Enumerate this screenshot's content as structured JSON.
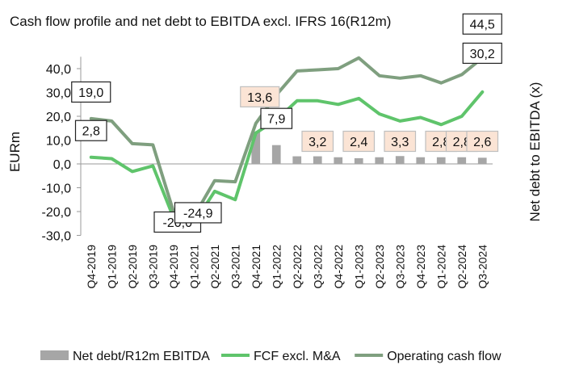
{
  "chart_data": {
    "type": "bar+line",
    "title": "Cash flow profile and net debt to EBITDA excl. IFRS 16(R12m)",
    "ylabel_left": "EURm",
    "ylabel_right": "Net debt to EBITDA (x)",
    "ylim": [
      -30,
      45
    ],
    "yticks": [
      "-30,0",
      "-20,0",
      "-10,0",
      "0,0",
      "10,0",
      "20,0",
      "30,0",
      "40,0"
    ],
    "ytick_values": [
      -30,
      -20,
      -10,
      0,
      10,
      20,
      30,
      40
    ],
    "categories": [
      "Q4-2019",
      "Q1-2019",
      "Q2-2019",
      "Q3-2019",
      "Q4-2019",
      "Q1-2021",
      "Q2-2021",
      "Q3-2021",
      "Q4-2021",
      "Q1-2022",
      "Q2-2022",
      "Q3-2022",
      "Q4-2022",
      "Q1-2023",
      "Q2-2023",
      "Q3-2023",
      "Q4-2023",
      "Q1-2024",
      "Q2-2024",
      "Q3-2024"
    ],
    "series": [
      {
        "name": "Net debt/R12m EBITDA",
        "kind": "bar",
        "color": "#a6a6a6",
        "values": [
          null,
          null,
          null,
          null,
          null,
          null,
          null,
          null,
          13.6,
          7.9,
          3.2,
          3.2,
          2.8,
          2.4,
          2.8,
          3.3,
          2.8,
          2.8,
          2.8,
          2.6
        ]
      },
      {
        "name": "FCF excl. M&A",
        "kind": "line",
        "color": "#5fc46b",
        "values": [
          2.8,
          2.2,
          -3.2,
          -0.8,
          -22.5,
          -24.9,
          -11.5,
          -15.0,
          13.0,
          18.5,
          26.5,
          26.5,
          25.0,
          27.5,
          21.0,
          18.0,
          19.5,
          16.5,
          20.0,
          30.2
        ]
      },
      {
        "name": "Operating cash flow",
        "kind": "line",
        "color": "#7f9f7f",
        "values": [
          19.0,
          18.0,
          8.5,
          8.0,
          -20.0,
          -22.0,
          -7.0,
          -7.5,
          17.0,
          29.0,
          39.0,
          39.5,
          40.0,
          44.5,
          37.0,
          36.0,
          37.0,
          34.0,
          37.5,
          44.5
        ]
      }
    ],
    "annotations": [
      {
        "text": "19,0",
        "series": "Operating cash flow",
        "index": 0,
        "style": "white"
      },
      {
        "text": "2,8",
        "series": "FCF excl. M&A",
        "index": 0,
        "style": "white"
      },
      {
        "text": "-20,0",
        "series": "Operating cash flow",
        "index": 4,
        "style": "white"
      },
      {
        "text": "-24,9",
        "series": "FCF excl. M&A",
        "index": 5,
        "style": "white"
      },
      {
        "text": "13,6",
        "series": "Net debt/R12m EBITDA",
        "index": 8,
        "style": "peach"
      },
      {
        "text": "7,9",
        "series": "Net debt/R12m EBITDA",
        "index": 9,
        "style": "white"
      },
      {
        "text": "3,2",
        "series": "Net debt/R12m EBITDA",
        "index": 11,
        "style": "peach"
      },
      {
        "text": "2,4",
        "series": "Net debt/R12m EBITDA",
        "index": 13,
        "style": "peach"
      },
      {
        "text": "3,3",
        "series": "Net debt/R12m EBITDA",
        "index": 15,
        "style": "peach"
      },
      {
        "text": "2,8",
        "series": "Net debt/R12m EBITDA",
        "index": 17,
        "style": "peach"
      },
      {
        "text": "2,8",
        "series": "Net debt/R12m EBITDA",
        "index": 18,
        "style": "peach"
      },
      {
        "text": "2,6",
        "series": "Net debt/R12m EBITDA",
        "index": 19,
        "style": "peach"
      },
      {
        "text": "44,5",
        "series": "Operating cash flow",
        "index": 19,
        "style": "white"
      },
      {
        "text": "30,2",
        "series": "FCF excl. M&A",
        "index": 19,
        "style": "white"
      }
    ],
    "legend_position": "bottom",
    "grid": false
  }
}
